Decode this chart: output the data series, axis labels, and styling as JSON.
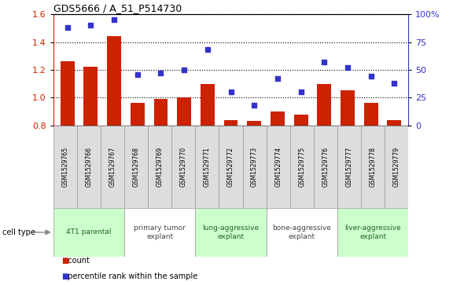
{
  "title": "GDS5666 / A_51_P514730",
  "samples": [
    "GSM1529765",
    "GSM1529766",
    "GSM1529767",
    "GSM1529768",
    "GSM1529769",
    "GSM1529770",
    "GSM1529771",
    "GSM1529772",
    "GSM1529773",
    "GSM1529774",
    "GSM1529775",
    "GSM1529776",
    "GSM1529777",
    "GSM1529778",
    "GSM1529779"
  ],
  "counts": [
    1.26,
    1.22,
    1.44,
    0.96,
    0.99,
    1.0,
    1.1,
    0.84,
    0.83,
    0.9,
    0.88,
    1.1,
    1.05,
    0.96,
    0.84
  ],
  "percentiles": [
    88,
    90,
    95,
    46,
    47,
    50,
    68,
    30,
    18,
    42,
    30,
    57,
    52,
    44,
    38
  ],
  "ylim_left": [
    0.8,
    1.6
  ],
  "ylim_right": [
    0,
    100
  ],
  "yticks_left": [
    0.8,
    1.0,
    1.2,
    1.4,
    1.6
  ],
  "yticks_right": [
    0,
    25,
    50,
    75,
    100
  ],
  "bar_color": "#CC2200",
  "dot_color": "#3333CC",
  "cell_types": [
    {
      "label": "4T1 parental",
      "start": 0,
      "end": 3,
      "color": "#CCFFCC"
    },
    {
      "label": "primary tumor\nexplant",
      "start": 3,
      "end": 6,
      "color": "#FFFFFF"
    },
    {
      "label": "lung-aggressive\nexplant",
      "start": 6,
      "end": 9,
      "color": "#CCFFCC"
    },
    {
      "label": "bone-aggressive\nexplant",
      "start": 9,
      "end": 12,
      "color": "#FFFFFF"
    },
    {
      "label": "liver-aggressive\nexplant",
      "start": 12,
      "end": 15,
      "color": "#CCFFCC"
    }
  ],
  "legend_count_label": "count",
  "legend_pct_label": "percentile rank within the sample",
  "cell_type_label": "cell type"
}
